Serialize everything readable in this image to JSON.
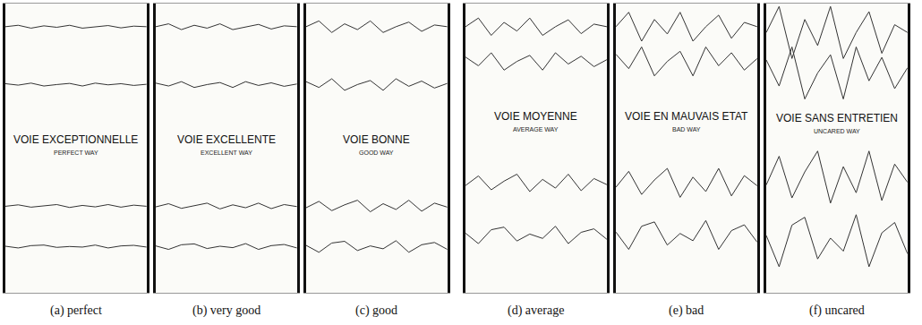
{
  "chart_data": [
    {
      "type": "line",
      "title": "VOIE EXCEPTIONNELLE",
      "subtitle": "PERFECT WAY",
      "caption": "(a) perfect",
      "color": "#333333",
      "xlim": [
        0,
        11
      ],
      "ylim": [
        0,
        100
      ],
      "tick_labels": false,
      "grid": false,
      "series": [
        {
          "values": [
            92,
            92.5,
            91.5,
            92.3,
            91.8,
            92.5,
            91.5,
            92,
            92.4,
            91.6,
            92.2,
            92
          ]
        },
        {
          "values": [
            72.3,
            71.8,
            72.5,
            71.5,
            72,
            72.4,
            71.5,
            72.5,
            71.9,
            72.3,
            71.7,
            72.1
          ]
        },
        {
          "values": [
            29.9,
            30.4,
            29.6,
            30.1,
            30.5,
            29.5,
            30.2,
            29.7,
            30.5,
            29.6,
            30.3,
            29.9
          ]
        },
        {
          "values": [
            16.1,
            15.5,
            16.3,
            16.5,
            15.7,
            16,
            15.8,
            16.5,
            15.5,
            16.2,
            16.4,
            15.8
          ]
        }
      ]
    },
    {
      "type": "line",
      "title": "VOIE EXCELLENTE",
      "subtitle": "EXCELLENT WAY",
      "caption": "(b) very good",
      "color": "#333333",
      "xlim": [
        0,
        11
      ],
      "ylim": [
        0,
        100
      ],
      "tick_labels": false,
      "grid": false,
      "series": [
        {
          "values": [
            92,
            93,
            91,
            92.5,
            91.5,
            93,
            91,
            92,
            92.8,
            91.2,
            92.3,
            92
          ]
        },
        {
          "values": [
            72.5,
            71.5,
            73,
            71,
            72,
            72.7,
            71,
            73,
            71.7,
            72.6,
            71.4,
            72.2
          ]
        },
        {
          "values": [
            29.7,
            30.8,
            29.2,
            30.2,
            31,
            29,
            30.4,
            29.4,
            31,
            29.1,
            30.5,
            29.8
          ]
        },
        {
          "values": [
            16.2,
            15,
            16.6,
            16.9,
            15.3,
            16.1,
            15.6,
            17,
            15,
            16.3,
            16.7,
            15.5
          ]
        }
      ]
    },
    {
      "type": "line",
      "title": "VOIE BONNE",
      "subtitle": "GOOD WAY",
      "caption": "(c) good",
      "color": "#333333",
      "xlim": [
        0,
        11
      ],
      "ylim": [
        0,
        100
      ],
      "tick_labels": false,
      "grid": false,
      "series": [
        {
          "values": [
            92,
            94,
            90,
            93,
            91,
            94,
            90,
            92,
            93.6,
            90.4,
            92.6,
            92
          ]
        },
        {
          "values": [
            73,
            71,
            74,
            70,
            72,
            73.4,
            70,
            74,
            71.4,
            73.2,
            70.8,
            72.4
          ]
        },
        {
          "values": [
            29.4,
            31.6,
            28.4,
            30.4,
            32,
            28,
            30.8,
            28.8,
            32,
            28.2,
            31,
            29.6
          ]
        },
        {
          "values": [
            16.4,
            14,
            17.2,
            17.8,
            14.6,
            16.2,
            15.2,
            18,
            14,
            16.6,
            17.4,
            15
          ]
        }
      ]
    },
    {
      "type": "line",
      "title": "VOIE MOYENNE",
      "subtitle": "AVERAGE WAY",
      "caption": "(d) average",
      "color": "#333333",
      "xlim": [
        0,
        11
      ],
      "ylim": [
        0,
        100
      ],
      "tick_labels": false,
      "grid": false,
      "series": [
        {
          "values": [
            92,
            95,
            89,
            93.5,
            90.5,
            95,
            89,
            92,
            94.4,
            89.6,
            92.9,
            92
          ]
        },
        {
          "values": [
            81.5,
            78.5,
            83,
            77,
            80,
            82.1,
            77,
            83,
            79.1,
            81.8,
            78.2,
            80.6
          ]
        },
        {
          "values": [
            37.1,
            40.4,
            35.6,
            38.6,
            41,
            35,
            39.2,
            36.2,
            41,
            35.3,
            39.5,
            37.4
          ]
        },
        {
          "values": [
            20.6,
            17,
            21.8,
            22.7,
            17.9,
            20.3,
            18.8,
            23,
            17,
            20.9,
            22.1,
            18.5
          ]
        }
      ]
    },
    {
      "type": "line",
      "title": "VOIE EN MAUVAIS ETAT",
      "subtitle": "BAD WAY",
      "caption": "(e) bad",
      "color": "#333333",
      "xlim": [
        0,
        11
      ],
      "ylim": [
        0,
        100
      ],
      "tick_labels": false,
      "grid": false,
      "series": [
        {
          "values": [
            92,
            97,
            87,
            94.5,
            89.5,
            97,
            87,
            92,
            96,
            88,
            93.5,
            92
          ]
        },
        {
          "values": [
            82.5,
            77.5,
            85,
            75,
            80,
            83.5,
            75,
            85,
            78.5,
            83,
            77,
            81
          ]
        },
        {
          "values": [
            36.5,
            42,
            34,
            39,
            43,
            33,
            40,
            35,
            43,
            33.5,
            40.5,
            37
          ]
        },
        {
          "values": [
            21,
            15,
            23,
            24.5,
            16.5,
            20.5,
            18,
            25,
            15,
            21.5,
            23.5,
            17.5
          ]
        }
      ]
    },
    {
      "type": "line",
      "title": "VOIE SANS ENTRETIEN",
      "subtitle": "UNCARED WAY",
      "caption": "(f) uncared",
      "color": "#333333",
      "xlim": [
        0,
        11
      ],
      "ylim": [
        0,
        100
      ],
      "tick_labels": false,
      "grid": false,
      "series": [
        {
          "values": [
            90,
            99,
            81,
            94.5,
            85.5,
            99,
            81,
            90,
            97.2,
            82.8,
            92.7,
            90
          ]
        },
        {
          "values": [
            80.5,
            71.5,
            85,
            67,
            76,
            82.3,
            67,
            85,
            73.3,
            81.4,
            70.6,
            77.8
          ]
        },
        {
          "values": [
            37.3,
            47.2,
            32.8,
            41.8,
            49,
            31,
            43.6,
            34.6,
            49,
            31.9,
            44.5,
            38.2
          ]
        },
        {
          "values": [
            19.8,
            9,
            23.4,
            26.1,
            11.7,
            18.9,
            14.4,
            27,
            9,
            20.7,
            24.3,
            13.5
          ]
        }
      ]
    }
  ]
}
